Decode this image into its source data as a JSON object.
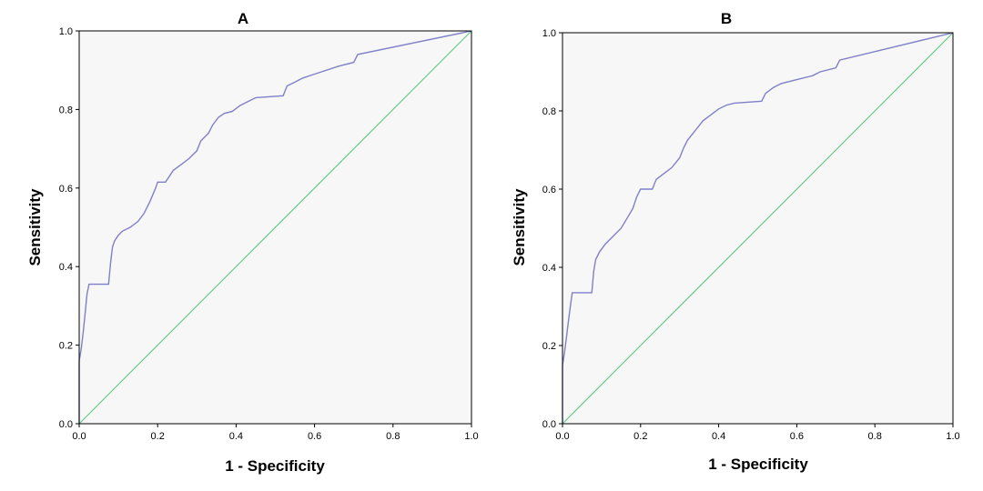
{
  "chart_data": [
    {
      "type": "line",
      "title": "A",
      "xlabel": "1 - Specificity",
      "ylabel": "Sensitivity",
      "xlim": [
        0,
        1
      ],
      "ylim": [
        0,
        1
      ],
      "x_ticks": [
        "0.0",
        "0.2",
        "0.4",
        "0.6",
        "0.8",
        "1.0"
      ],
      "y_ticks": [
        "0.0",
        "0.2",
        "0.4",
        "0.6",
        "0.8",
        "1.0"
      ],
      "grid": false,
      "background": "#f7f7f7",
      "series": [
        {
          "kind": "roc-curve",
          "color": "#8080c8",
          "points": [
            [
              0,
              0
            ],
            [
              0,
              0.16
            ],
            [
              0.005,
              0.19
            ],
            [
              0.01,
              0.23
            ],
            [
              0.015,
              0.28
            ],
            [
              0.02,
              0.33
            ],
            [
              0.025,
              0.355
            ],
            [
              0.075,
              0.355
            ],
            [
              0.08,
              0.41
            ],
            [
              0.085,
              0.45
            ],
            [
              0.09,
              0.465
            ],
            [
              0.1,
              0.48
            ],
            [
              0.11,
              0.49
            ],
            [
              0.13,
              0.5
            ],
            [
              0.15,
              0.515
            ],
            [
              0.165,
              0.535
            ],
            [
              0.18,
              0.565
            ],
            [
              0.195,
              0.6
            ],
            [
              0.2,
              0.615
            ],
            [
              0.22,
              0.615
            ],
            [
              0.24,
              0.645
            ],
            [
              0.26,
              0.66
            ],
            [
              0.28,
              0.675
            ],
            [
              0.3,
              0.695
            ],
            [
              0.31,
              0.72
            ],
            [
              0.33,
              0.74
            ],
            [
              0.34,
              0.76
            ],
            [
              0.355,
              0.78
            ],
            [
              0.37,
              0.79
            ],
            [
              0.39,
              0.795
            ],
            [
              0.41,
              0.81
            ],
            [
              0.43,
              0.82
            ],
            [
              0.45,
              0.83
            ],
            [
              0.52,
              0.835
            ],
            [
              0.53,
              0.86
            ],
            [
              0.55,
              0.87
            ],
            [
              0.57,
              0.88
            ],
            [
              0.6,
              0.89
            ],
            [
              0.66,
              0.91
            ],
            [
              0.7,
              0.92
            ],
            [
              0.71,
              0.94
            ],
            [
              1,
              1
            ]
          ]
        },
        {
          "kind": "reference-line",
          "color": "#5fc77e",
          "points": [
            [
              0,
              0
            ],
            [
              1,
              1
            ]
          ]
        }
      ]
    },
    {
      "type": "line",
      "title": "B",
      "xlabel": "1 - Specificity",
      "ylabel": "Sensitivity",
      "xlim": [
        0,
        1
      ],
      "ylim": [
        0,
        1
      ],
      "x_ticks": [
        "0.0",
        "0.2",
        "0.4",
        "0.6",
        "0.8",
        "1.0"
      ],
      "y_ticks": [
        "0.0",
        "0.2",
        "0.4",
        "0.6",
        "0.8",
        "1.0"
      ],
      "grid": false,
      "background": "#f7f7f7",
      "series": [
        {
          "kind": "roc-curve",
          "color": "#8080c8",
          "points": [
            [
              0,
              0
            ],
            [
              0,
              0.15
            ],
            [
              0.005,
              0.18
            ],
            [
              0.01,
              0.22
            ],
            [
              0.015,
              0.26
            ],
            [
              0.02,
              0.3
            ],
            [
              0.025,
              0.335
            ],
            [
              0.075,
              0.335
            ],
            [
              0.08,
              0.39
            ],
            [
              0.085,
              0.42
            ],
            [
              0.095,
              0.44
            ],
            [
              0.11,
              0.46
            ],
            [
              0.13,
              0.48
            ],
            [
              0.15,
              0.5
            ],
            [
              0.165,
              0.525
            ],
            [
              0.18,
              0.55
            ],
            [
              0.19,
              0.58
            ],
            [
              0.2,
              0.6
            ],
            [
              0.23,
              0.6
            ],
            [
              0.24,
              0.625
            ],
            [
              0.26,
              0.64
            ],
            [
              0.28,
              0.655
            ],
            [
              0.3,
              0.68
            ],
            [
              0.31,
              0.705
            ],
            [
              0.32,
              0.725
            ],
            [
              0.34,
              0.75
            ],
            [
              0.36,
              0.775
            ],
            [
              0.38,
              0.79
            ],
            [
              0.4,
              0.805
            ],
            [
              0.42,
              0.815
            ],
            [
              0.44,
              0.82
            ],
            [
              0.51,
              0.825
            ],
            [
              0.52,
              0.845
            ],
            [
              0.54,
              0.86
            ],
            [
              0.56,
              0.87
            ],
            [
              0.6,
              0.88
            ],
            [
              0.64,
              0.89
            ],
            [
              0.66,
              0.9
            ],
            [
              0.7,
              0.91
            ],
            [
              0.71,
              0.93
            ],
            [
              1,
              1
            ]
          ]
        },
        {
          "kind": "reference-line",
          "color": "#5fc77e",
          "points": [
            [
              0,
              0
            ],
            [
              1,
              1
            ]
          ]
        }
      ]
    }
  ]
}
